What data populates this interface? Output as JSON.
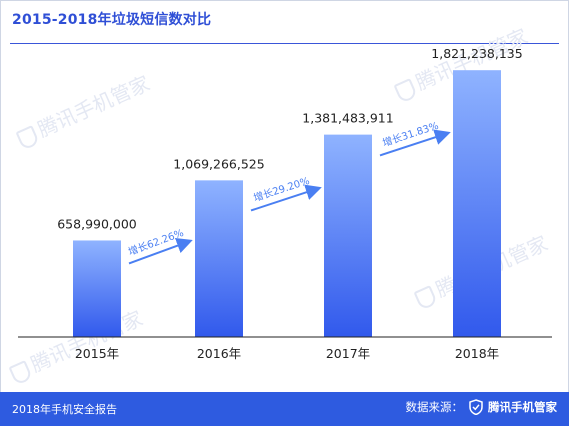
{
  "header": {
    "title": "2015-2018年垃圾短信数对比"
  },
  "watermark": {
    "text": "腾讯手机管家"
  },
  "chart_data": {
    "type": "bar",
    "title": "2015-2018年垃圾短信数对比",
    "categories": [
      "2015年",
      "2016年",
      "2017年",
      "2018年"
    ],
    "values": [
      658990000,
      1069266525,
      1381483911,
      1821238135
    ],
    "value_labels": [
      "658,990,000",
      "1,069,266,525",
      "1,381,483,911",
      "1,821,238,135"
    ],
    "growth_labels": [
      "增长62.26%",
      "增长29.20%",
      "增长31.83%"
    ],
    "ylim": [
      0,
      2000000000
    ],
    "grid": false,
    "colors": {
      "bar_top": "#8fb3ff",
      "bar_bottom": "#3159ec",
      "arrow": "#4a7ff2",
      "axis": "#222222"
    }
  },
  "footer": {
    "report_name": "2018年手机安全报告",
    "source_label": "数据来源：",
    "brand": "腾讯手机管家",
    "background": "#2e5be0"
  }
}
